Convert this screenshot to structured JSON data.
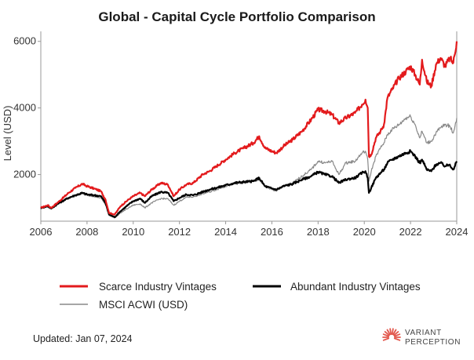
{
  "chart_data": {
    "type": "line",
    "title": "Global - Capital Cycle Portfolio Comparison",
    "ylabel": "Level (USD)",
    "xlabel": "",
    "xlim": [
      2006,
      2024
    ],
    "ylim": [
      600,
      6300
    ],
    "x_ticks": [
      2006,
      2008,
      2010,
      2012,
      2014,
      2016,
      2018,
      2020,
      2022,
      2024
    ],
    "y_ticks": [
      2000,
      4000,
      6000
    ],
    "grid": false,
    "legend_position": "bottom",
    "series": [
      {
        "name": "Scarce Industry Vintages",
        "color": "#e31a1c",
        "points": [
          [
            2006.0,
            1000
          ],
          [
            2006.3,
            1080
          ],
          [
            2006.45,
            1000
          ],
          [
            2006.8,
            1200
          ],
          [
            2007.2,
            1450
          ],
          [
            2007.5,
            1600
          ],
          [
            2007.8,
            1720
          ],
          [
            2008.0,
            1650
          ],
          [
            2008.3,
            1580
          ],
          [
            2008.6,
            1500
          ],
          [
            2008.8,
            1250
          ],
          [
            2008.95,
            850
          ],
          [
            2009.2,
            800
          ],
          [
            2009.45,
            1050
          ],
          [
            2009.8,
            1250
          ],
          [
            2010.0,
            1350
          ],
          [
            2010.3,
            1450
          ],
          [
            2010.5,
            1350
          ],
          [
            2010.8,
            1550
          ],
          [
            2011.2,
            1750
          ],
          [
            2011.5,
            1700
          ],
          [
            2011.75,
            1350
          ],
          [
            2012.0,
            1550
          ],
          [
            2012.3,
            1700
          ],
          [
            2012.6,
            1750
          ],
          [
            2013.0,
            2000
          ],
          [
            2013.3,
            2100
          ],
          [
            2013.6,
            2250
          ],
          [
            2014.0,
            2450
          ],
          [
            2014.4,
            2650
          ],
          [
            2014.8,
            2800
          ],
          [
            2015.2,
            2950
          ],
          [
            2015.45,
            3150
          ],
          [
            2015.7,
            2800
          ],
          [
            2016.0,
            2700
          ],
          [
            2016.2,
            2650
          ],
          [
            2016.5,
            2850
          ],
          [
            2016.9,
            3050
          ],
          [
            2017.3,
            3300
          ],
          [
            2017.7,
            3650
          ],
          [
            2018.0,
            3950
          ],
          [
            2018.3,
            3900
          ],
          [
            2018.6,
            3800
          ],
          [
            2018.9,
            3550
          ],
          [
            2019.2,
            3700
          ],
          [
            2019.6,
            3850
          ],
          [
            2019.9,
            4100
          ],
          [
            2020.05,
            4250
          ],
          [
            2020.15,
            4000
          ],
          [
            2020.2,
            2550
          ],
          [
            2020.3,
            2600
          ],
          [
            2020.5,
            3100
          ],
          [
            2020.7,
            3300
          ],
          [
            2020.85,
            3500
          ],
          [
            2021.0,
            4300
          ],
          [
            2021.2,
            4550
          ],
          [
            2021.5,
            4900
          ],
          [
            2021.8,
            5100
          ],
          [
            2022.0,
            5250
          ],
          [
            2022.2,
            5000
          ],
          [
            2022.4,
            4700
          ],
          [
            2022.5,
            5450
          ],
          [
            2022.7,
            4800
          ],
          [
            2022.9,
            4650
          ],
          [
            2023.1,
            5300
          ],
          [
            2023.3,
            5500
          ],
          [
            2023.5,
            5250
          ],
          [
            2023.7,
            5500
          ],
          [
            2023.85,
            5350
          ],
          [
            2024.0,
            6000
          ]
        ]
      },
      {
        "name": "Abundant Industry Vintages",
        "color": "#000000",
        "points": [
          [
            2006.0,
            1000
          ],
          [
            2006.3,
            1050
          ],
          [
            2006.45,
            980
          ],
          [
            2006.8,
            1150
          ],
          [
            2007.2,
            1300
          ],
          [
            2007.5,
            1380
          ],
          [
            2007.8,
            1450
          ],
          [
            2008.0,
            1400
          ],
          [
            2008.3,
            1380
          ],
          [
            2008.6,
            1350
          ],
          [
            2008.8,
            1150
          ],
          [
            2008.95,
            800
          ],
          [
            2009.2,
            720
          ],
          [
            2009.45,
            900
          ],
          [
            2009.8,
            1100
          ],
          [
            2010.0,
            1200
          ],
          [
            2010.3,
            1280
          ],
          [
            2010.5,
            1150
          ],
          [
            2010.8,
            1350
          ],
          [
            2011.2,
            1480
          ],
          [
            2011.5,
            1450
          ],
          [
            2011.75,
            1200
          ],
          [
            2012.0,
            1300
          ],
          [
            2012.3,
            1400
          ],
          [
            2012.6,
            1380
          ],
          [
            2013.0,
            1480
          ],
          [
            2013.3,
            1550
          ],
          [
            2013.6,
            1600
          ],
          [
            2014.0,
            1680
          ],
          [
            2014.4,
            1750
          ],
          [
            2014.8,
            1780
          ],
          [
            2015.2,
            1800
          ],
          [
            2015.45,
            1900
          ],
          [
            2015.7,
            1650
          ],
          [
            2016.0,
            1580
          ],
          [
            2016.2,
            1550
          ],
          [
            2016.5,
            1650
          ],
          [
            2016.9,
            1720
          ],
          [
            2017.3,
            1850
          ],
          [
            2017.7,
            1950
          ],
          [
            2018.0,
            2080
          ],
          [
            2018.3,
            2000
          ],
          [
            2018.6,
            1950
          ],
          [
            2018.9,
            1750
          ],
          [
            2019.2,
            1850
          ],
          [
            2019.6,
            1900
          ],
          [
            2019.9,
            2050
          ],
          [
            2020.05,
            2100
          ],
          [
            2020.15,
            1900
          ],
          [
            2020.2,
            1450
          ],
          [
            2020.3,
            1600
          ],
          [
            2020.5,
            1900
          ],
          [
            2020.7,
            2050
          ],
          [
            2020.85,
            2150
          ],
          [
            2021.0,
            2350
          ],
          [
            2021.2,
            2450
          ],
          [
            2021.5,
            2550
          ],
          [
            2021.8,
            2650
          ],
          [
            2022.0,
            2700
          ],
          [
            2022.2,
            2550
          ],
          [
            2022.4,
            2350
          ],
          [
            2022.5,
            2450
          ],
          [
            2022.7,
            2150
          ],
          [
            2022.9,
            2100
          ],
          [
            2023.1,
            2300
          ],
          [
            2023.3,
            2350
          ],
          [
            2023.5,
            2250
          ],
          [
            2023.7,
            2300
          ],
          [
            2023.85,
            2150
          ],
          [
            2024.0,
            2400
          ]
        ]
      },
      {
        "name": "MSCI ACWI (USD)",
        "color": "#888888",
        "points": [
          [
            2006.0,
            1000
          ],
          [
            2006.3,
            1060
          ],
          [
            2006.45,
            990
          ],
          [
            2006.8,
            1150
          ],
          [
            2007.2,
            1300
          ],
          [
            2007.5,
            1380
          ],
          [
            2007.8,
            1420
          ],
          [
            2008.0,
            1380
          ],
          [
            2008.3,
            1350
          ],
          [
            2008.6,
            1300
          ],
          [
            2008.8,
            1100
          ],
          [
            2008.95,
            780
          ],
          [
            2009.2,
            700
          ],
          [
            2009.45,
            850
          ],
          [
            2009.8,
            1000
          ],
          [
            2010.0,
            1080
          ],
          [
            2010.3,
            1120
          ],
          [
            2010.5,
            1000
          ],
          [
            2010.8,
            1150
          ],
          [
            2011.2,
            1280
          ],
          [
            2011.5,
            1270
          ],
          [
            2011.75,
            1080
          ],
          [
            2012.0,
            1200
          ],
          [
            2012.3,
            1320
          ],
          [
            2012.6,
            1330
          ],
          [
            2013.0,
            1420
          ],
          [
            2013.3,
            1480
          ],
          [
            2013.6,
            1550
          ],
          [
            2014.0,
            1650
          ],
          [
            2014.4,
            1720
          ],
          [
            2014.8,
            1750
          ],
          [
            2015.2,
            1800
          ],
          [
            2015.45,
            1850
          ],
          [
            2015.7,
            1650
          ],
          [
            2016.0,
            1550
          ],
          [
            2016.2,
            1500
          ],
          [
            2016.5,
            1650
          ],
          [
            2016.9,
            1750
          ],
          [
            2017.3,
            1950
          ],
          [
            2017.7,
            2150
          ],
          [
            2018.0,
            2400
          ],
          [
            2018.3,
            2350
          ],
          [
            2018.6,
            2400
          ],
          [
            2018.9,
            2000
          ],
          [
            2019.2,
            2350
          ],
          [
            2019.6,
            2400
          ],
          [
            2019.9,
            2650
          ],
          [
            2020.05,
            2700
          ],
          [
            2020.15,
            2450
          ],
          [
            2020.2,
            1800
          ],
          [
            2020.3,
            2100
          ],
          [
            2020.5,
            2550
          ],
          [
            2020.7,
            2800
          ],
          [
            2020.85,
            2950
          ],
          [
            2021.0,
            3200
          ],
          [
            2021.2,
            3350
          ],
          [
            2021.5,
            3500
          ],
          [
            2021.8,
            3700
          ],
          [
            2022.0,
            3750
          ],
          [
            2022.2,
            3500
          ],
          [
            2022.4,
            3100
          ],
          [
            2022.5,
            3300
          ],
          [
            2022.7,
            2950
          ],
          [
            2022.9,
            3000
          ],
          [
            2023.1,
            3250
          ],
          [
            2023.3,
            3400
          ],
          [
            2023.5,
            3500
          ],
          [
            2023.7,
            3450
          ],
          [
            2023.85,
            3250
          ],
          [
            2024.0,
            3700
          ]
        ]
      }
    ]
  },
  "footer": {
    "updated": "Updated: Jan 07, 2024"
  },
  "logo": {
    "line1": "VARIANT",
    "line2": "PERCEPTION",
    "color": "#e2574c"
  }
}
